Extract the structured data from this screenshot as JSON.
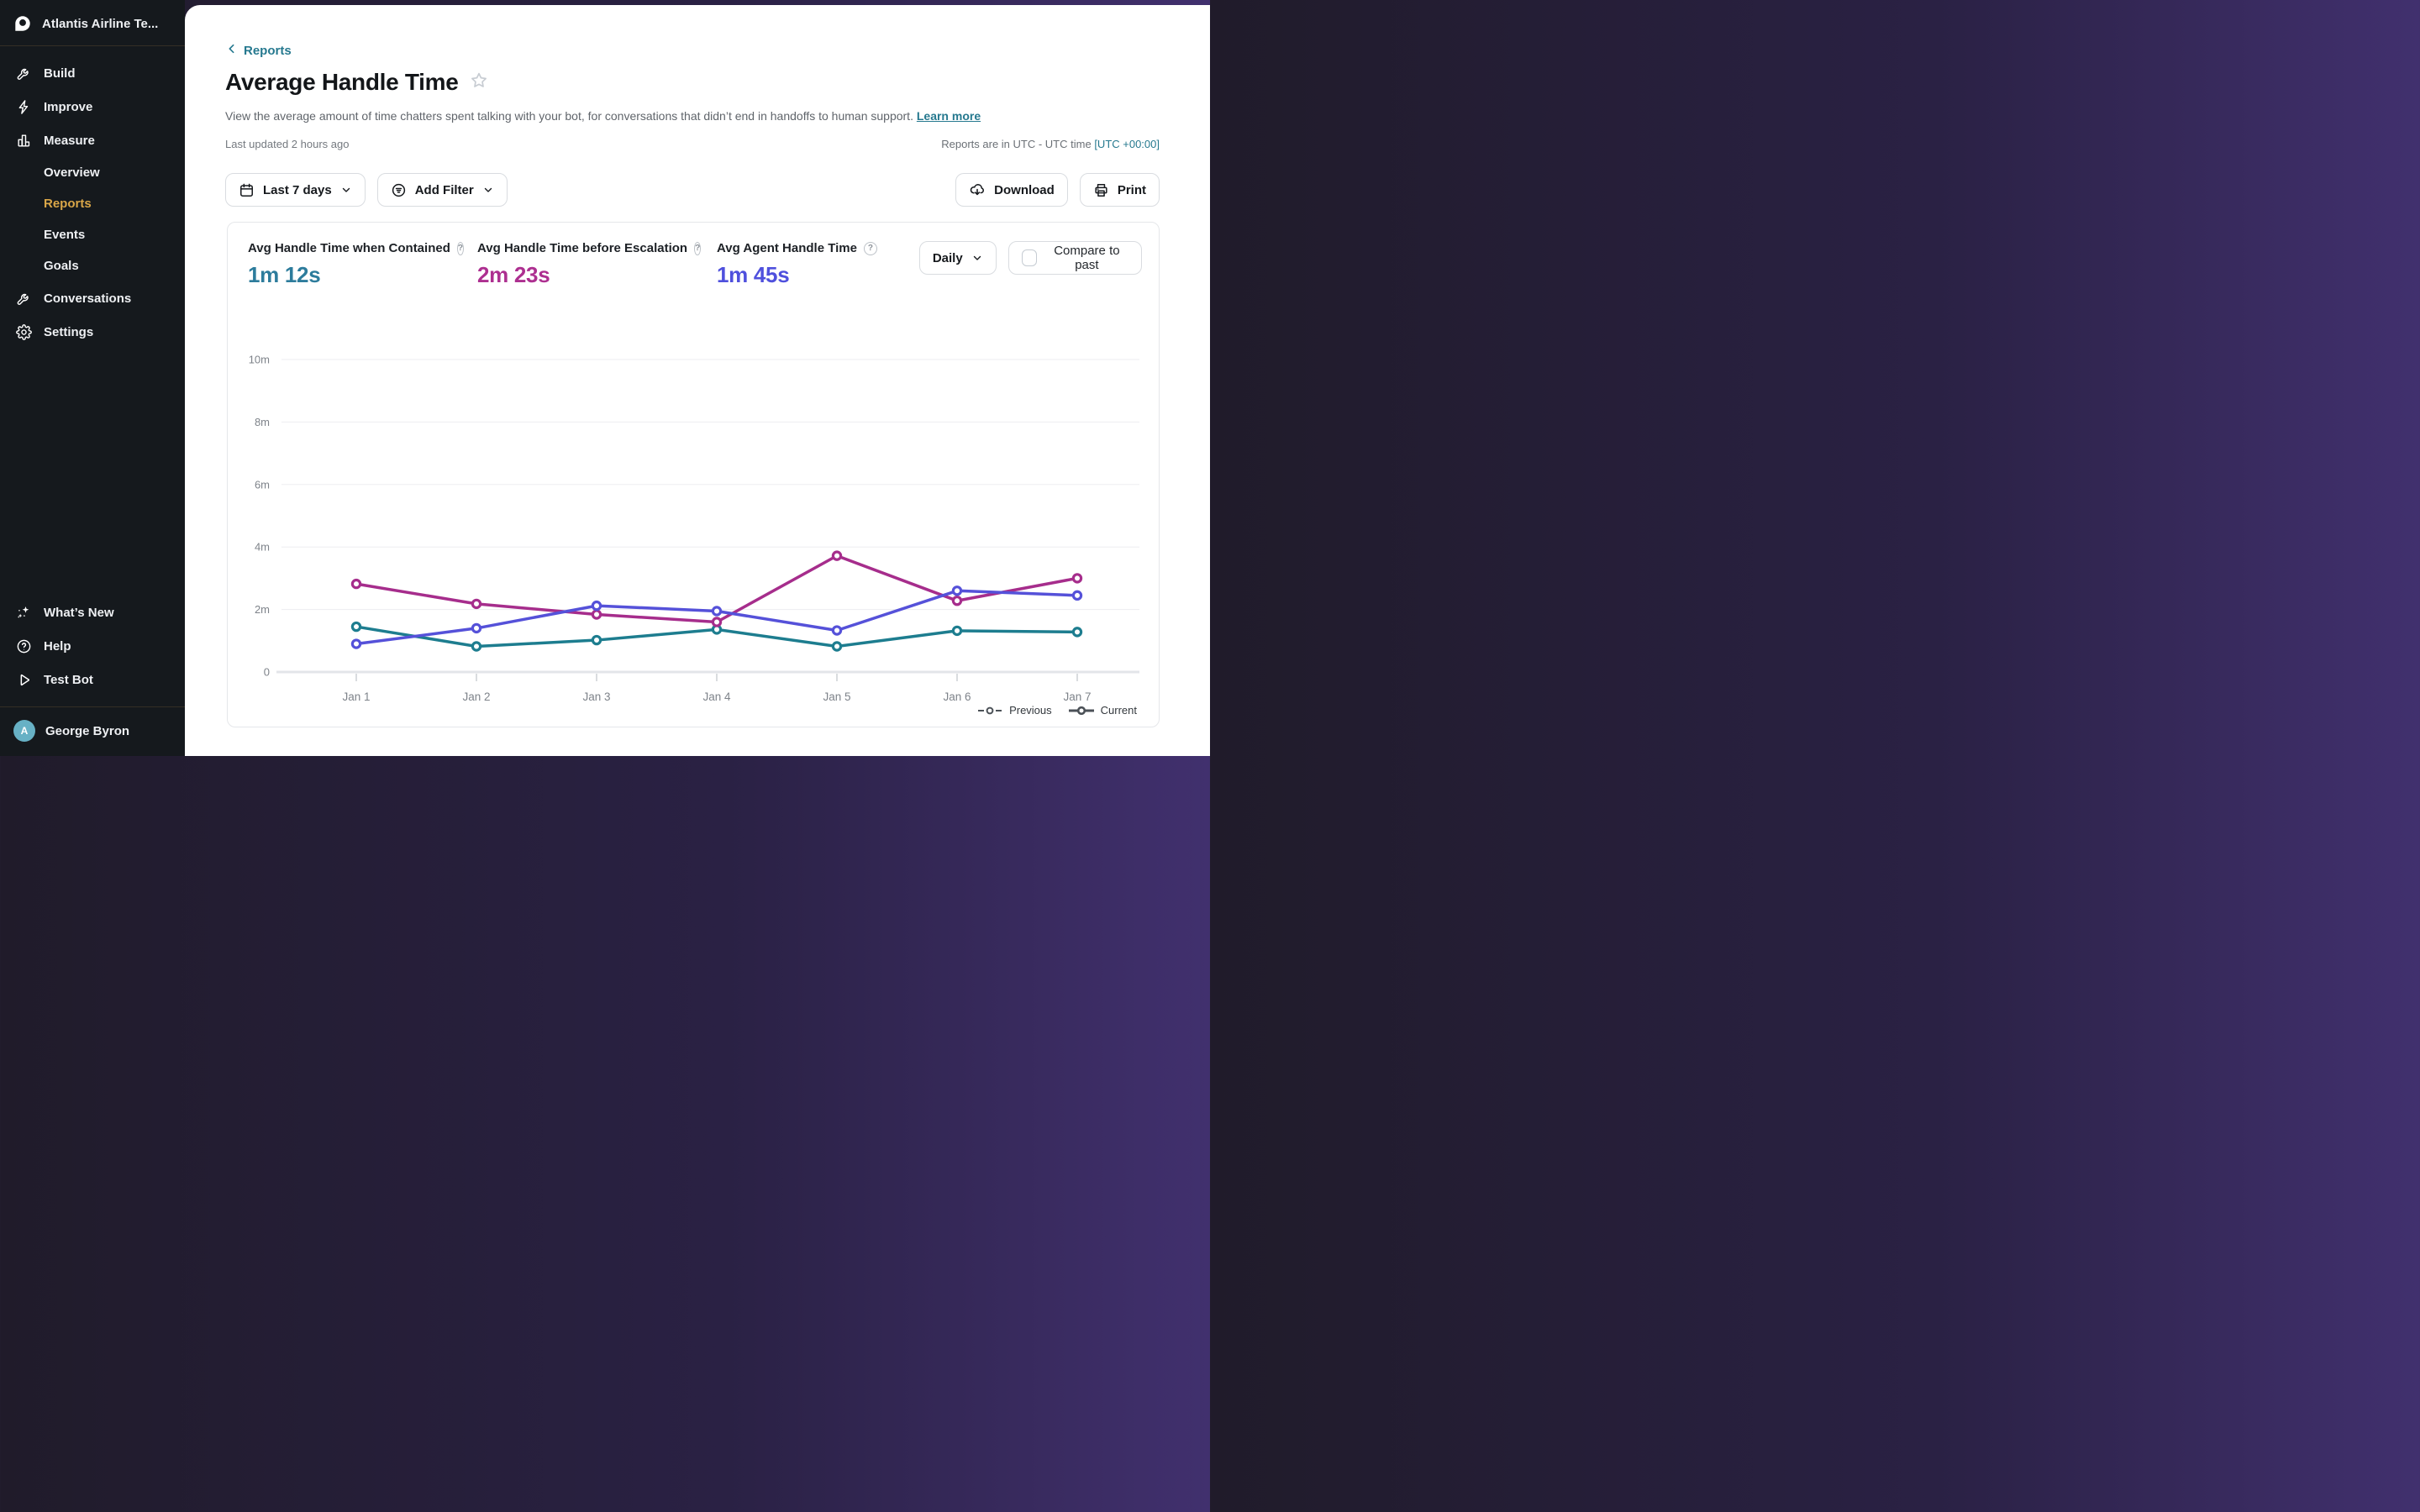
{
  "sidebar": {
    "workspace": "Atlantis Airline Te...",
    "items": [
      {
        "label": "Build"
      },
      {
        "label": "Improve"
      },
      {
        "label": "Measure"
      },
      {
        "label": "Overview"
      },
      {
        "label": "Reports"
      },
      {
        "label": "Events"
      },
      {
        "label": "Goals"
      },
      {
        "label": "Conversations"
      },
      {
        "label": "Settings"
      }
    ],
    "footer_items": [
      {
        "label": "What’s New"
      },
      {
        "label": "Help"
      },
      {
        "label": "Test Bot"
      }
    ],
    "user": {
      "name": "George Byron",
      "avatar_initial": "A",
      "avatar_color": "#67b1c5"
    },
    "active_color": "#d9a648"
  },
  "header": {
    "back_label": "Reports",
    "title": "Average Handle Time",
    "description": "View the average amount of time chatters spent talking with your bot, for conversations that didn’t end in handoffs to human support.",
    "learn_more": "Learn more",
    "last_updated": "Last updated 2 hours ago",
    "timezone_note": "Reports are in UTC - UTC time",
    "timezone_link": "[UTC +00:00]"
  },
  "toolbar": {
    "date_range_label": "Last 7 days",
    "add_filter_label": "Add Filter",
    "download_label": "Download",
    "print_label": "Print"
  },
  "metrics": [
    {
      "label": "Avg Handle Time when Contained",
      "value": "1m 12s",
      "color": "#2d7c9c"
    },
    {
      "label": "Avg Handle Time before Escalation",
      "value": "2m 23s",
      "color": "#ad2f90"
    },
    {
      "label": "Avg Agent Handle Time",
      "value": "1m 45s",
      "color": "#4f50dd"
    }
  ],
  "controls": {
    "granularity": "Daily",
    "compare_label": "Compare to past",
    "compare_checked": false
  },
  "chart_data": {
    "type": "line",
    "x": [
      "Jan 1",
      "Jan 2",
      "Jan 3",
      "Jan 4",
      "Jan 5",
      "Jan 6",
      "Jan 7"
    ],
    "unit": "minutes",
    "ylim": [
      0,
      10
    ],
    "yticks": [
      0,
      2,
      4,
      6,
      8,
      10
    ],
    "ytick_labels": [
      "0",
      "2m",
      "4m",
      "6m",
      "8m",
      "10m"
    ],
    "grid": true,
    "series": [
      {
        "name": "Avg Handle Time when Contained",
        "color": "#1d7d8f",
        "values": [
          1.45,
          0.82,
          1.02,
          1.36,
          0.82,
          1.32,
          1.28
        ]
      },
      {
        "name": "Avg Handle Time before Escalation",
        "color": "#a62d8c",
        "values": [
          2.82,
          2.18,
          1.84,
          1.6,
          3.72,
          2.28,
          3.0
        ]
      },
      {
        "name": "Avg Agent Handle Time",
        "color": "#5551d9",
        "values": [
          0.9,
          1.4,
          2.12,
          1.95,
          1.33,
          2.6,
          2.45
        ]
      }
    ],
    "legend": [
      {
        "label": "Previous",
        "style": "dashed"
      },
      {
        "label": "Current",
        "style": "solid"
      }
    ],
    "legend_position": "bottom-right"
  }
}
